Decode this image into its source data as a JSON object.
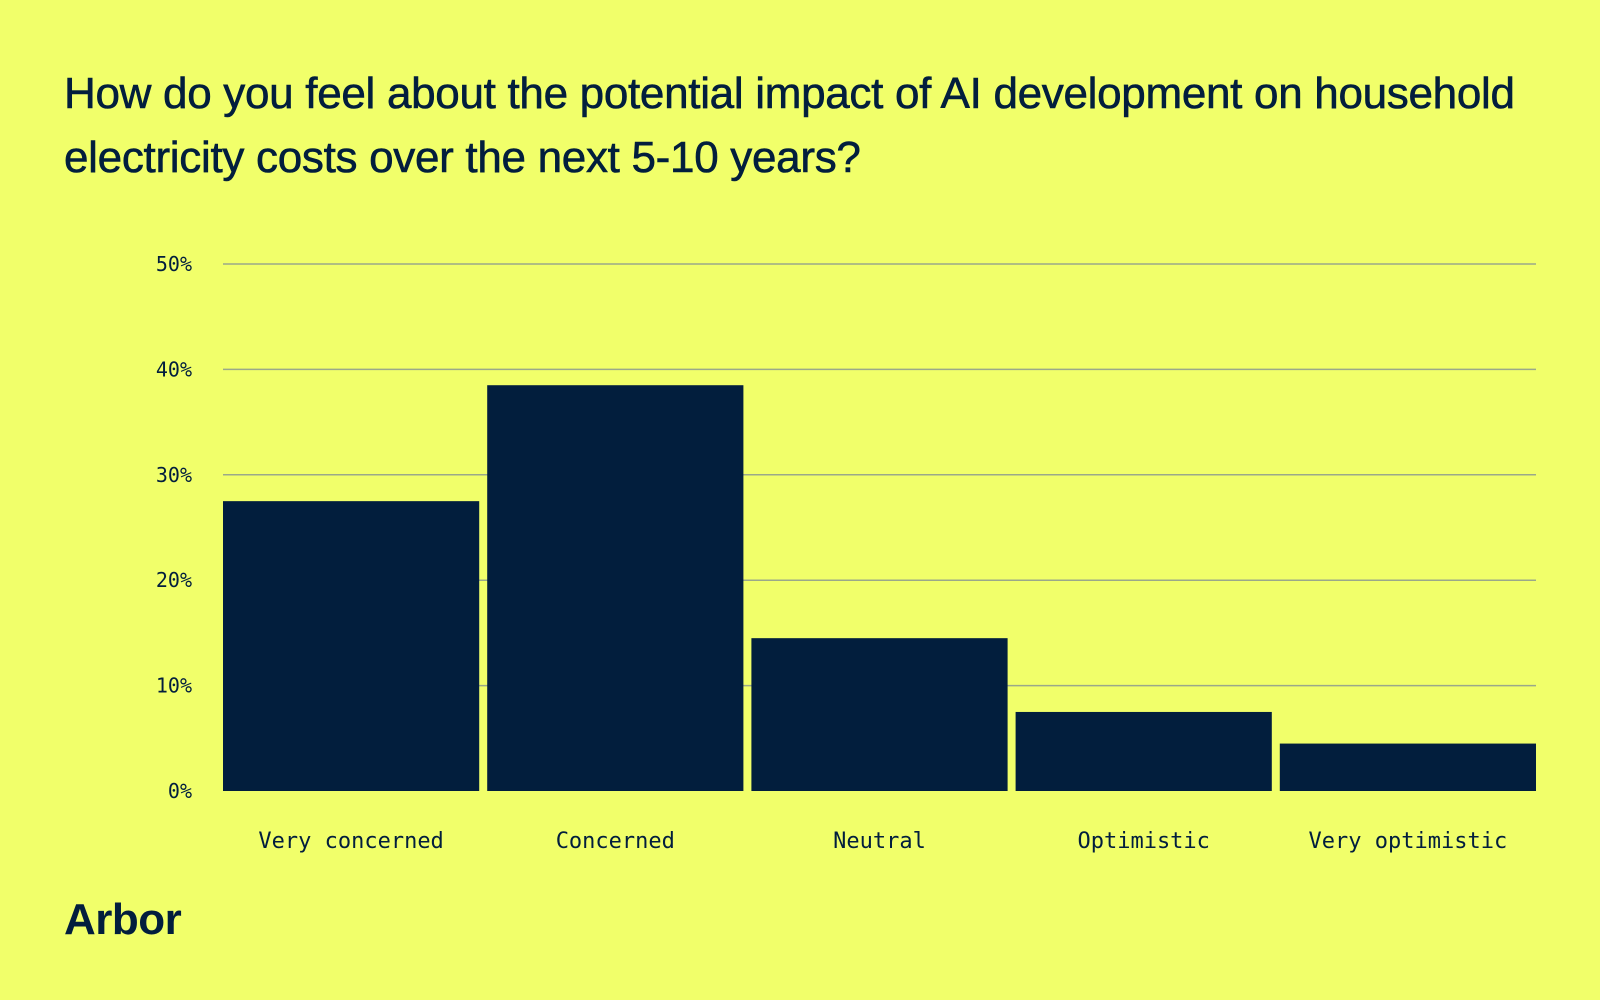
{
  "title": "How do you feel about the potential impact of AI development on household electricity costs over the next 5-10 years?",
  "brand": "Arbor",
  "colors": {
    "background": "#f1ff6a",
    "bar": "#021e3d",
    "text": "#021e3d",
    "grid": "#9aa88a"
  },
  "chart_data": {
    "type": "bar",
    "title": "How do you feel about the potential impact of AI development on household electricity costs over the next 5-10 years?",
    "xlabel": "",
    "ylabel": "",
    "categories": [
      "Very concerned",
      "Concerned",
      "Neutral",
      "Optimistic",
      "Very optimistic"
    ],
    "values": [
      27.5,
      38.5,
      14.5,
      7.5,
      4.5
    ],
    "unit": "%",
    "ylim": [
      0,
      50
    ],
    "yticks": [
      0,
      10,
      20,
      30,
      40,
      50
    ],
    "ytick_labels": [
      "0%",
      "10%",
      "20%",
      "30%",
      "40%",
      "50%"
    ],
    "grid": true,
    "legend": "none"
  }
}
